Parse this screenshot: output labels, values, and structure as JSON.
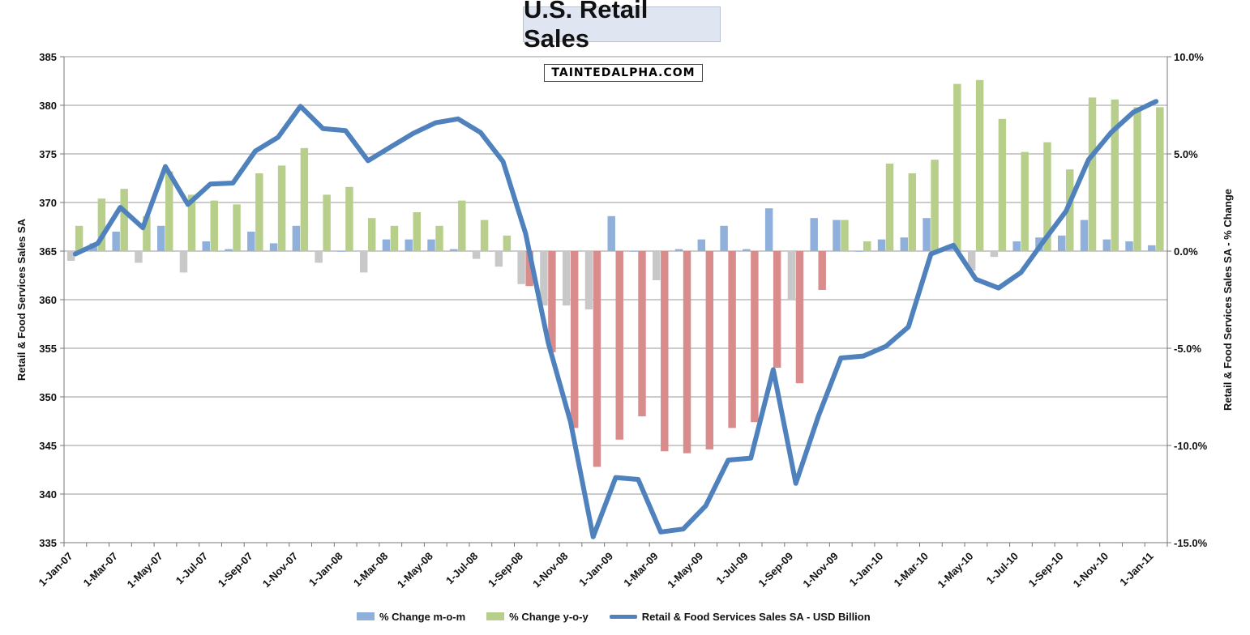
{
  "chart_data": {
    "type": "bar+line",
    "title": "U.S. Retail Sales",
    "watermark": "TaintedAlpha.com",
    "y_left": {
      "label": "Retail & Food Services Sales SA",
      "min": 335,
      "max": 385,
      "ticks": [
        "335",
        "340",
        "345",
        "350",
        "355",
        "360",
        "365",
        "370",
        "375",
        "380",
        "385"
      ]
    },
    "y_right": {
      "label": "Retail & Food Services Sales SA - % Change",
      "min": -15,
      "max": 10,
      "ticks": [
        "-15.0%",
        "-10.0%",
        "-5.0%",
        "0.0%",
        "5.0%",
        "10.0%"
      ]
    },
    "x_tick_labels": [
      "1-Jan-07",
      "1-Mar-07",
      "1-May-07",
      "1-Jul-07",
      "1-Sep-07",
      "1-Nov-07",
      "1-Jan-08",
      "1-Mar-08",
      "1-May-08",
      "1-Jul-08",
      "1-Sep-08",
      "1-Nov-08",
      "1-Jan-09",
      "1-Mar-09",
      "1-May-09",
      "1-Jul-09",
      "1-Sep-09",
      "1-Nov-09",
      "1-Jan-10",
      "1-Mar-10",
      "1-May-10",
      "1-Jul-10",
      "1-Sep-10",
      "1-Nov-10",
      "1-Jan-11"
    ],
    "months": [
      "Jan-07",
      "Feb-07",
      "Mar-07",
      "Apr-07",
      "May-07",
      "Jun-07",
      "Jul-07",
      "Aug-07",
      "Sep-07",
      "Oct-07",
      "Nov-07",
      "Dec-07",
      "Jan-08",
      "Feb-08",
      "Mar-08",
      "Apr-08",
      "May-08",
      "Jun-08",
      "Jul-08",
      "Aug-08",
      "Sep-08",
      "Oct-08",
      "Nov-08",
      "Dec-08",
      "Jan-09",
      "Feb-09",
      "Mar-09",
      "Apr-09",
      "May-09",
      "Jun-09",
      "Jul-09",
      "Aug-09",
      "Sep-09",
      "Oct-09",
      "Nov-09",
      "Dec-09",
      "Jan-10",
      "Feb-10",
      "Mar-10",
      "Apr-10",
      "May-10",
      "Jun-10",
      "Jul-10",
      "Aug-10",
      "Sep-10",
      "Oct-10",
      "Nov-10",
      "Dec-10",
      "Jan-11"
    ],
    "series": [
      {
        "name": "% Change m-o-m",
        "axis": "right",
        "color": "#8eb0da",
        "negative_color": "#c8c8c8",
        "values": [
          -0.5,
          0.4,
          1.0,
          -0.6,
          1.3,
          -1.1,
          0.5,
          0.1,
          1.0,
          0.4,
          1.3,
          -0.6,
          0.0,
          -1.1,
          0.6,
          0.6,
          0.6,
          0.1,
          -0.4,
          -0.8,
          -1.7,
          -2.8,
          -2.8,
          -3.0,
          1.8,
          0.0,
          -1.5,
          0.1,
          0.6,
          1.3,
          0.1,
          2.2,
          -2.5,
          1.7,
          1.6,
          0.0,
          0.6,
          0.7,
          1.7,
          0.3,
          -1.0,
          -0.3,
          0.5,
          0.7,
          0.8,
          1.6,
          0.6,
          0.5,
          0.3
        ]
      },
      {
        "name": "% Change y-o-y",
        "axis": "right",
        "color": "#b7cf8a",
        "negative_color": "#d98c8c",
        "values": [
          1.3,
          2.7,
          3.2,
          1.8,
          4.1,
          2.9,
          2.6,
          2.4,
          4.0,
          4.4,
          5.3,
          2.9,
          3.3,
          1.7,
          1.3,
          2.0,
          1.3,
          2.6,
          1.6,
          0.8,
          -1.8,
          -5.2,
          -9.1,
          -11.1,
          -9.7,
          -8.5,
          -10.3,
          -10.4,
          -10.2,
          -9.1,
          -8.8,
          -6.0,
          -6.8,
          -2.0,
          1.6,
          0.5,
          4.5,
          4.0,
          4.7,
          8.6,
          8.8,
          6.8,
          5.1,
          5.6,
          4.2,
          7.9,
          7.8,
          7.4,
          7.4
        ]
      },
      {
        "name": "Retail & Food Services Sales SA - USD Billion",
        "axis": "left",
        "color": "#4f81bd",
        "values": [
          364.7,
          365.8,
          369.5,
          367.4,
          373.7,
          369.8,
          371.9,
          372.0,
          375.3,
          376.7,
          379.9,
          377.6,
          377.4,
          374.3,
          375.7,
          377.1,
          378.2,
          378.6,
          377.2,
          374.2,
          366.8,
          355.6,
          347.4,
          335.6,
          341.7,
          341.5,
          336.1,
          336.4,
          338.8,
          343.5,
          343.7,
          352.8,
          341.1,
          348.0,
          354.0,
          354.2,
          355.2,
          357.2,
          364.7,
          365.6,
          362.1,
          361.2,
          362.8,
          366.0,
          369.1,
          374.4,
          377.2,
          379.3,
          380.4
        ]
      }
    ],
    "legend": [
      "% Change m-o-m",
      "% Change y-o-y",
      "Retail & Food Services Sales SA - USD Billion"
    ]
  }
}
